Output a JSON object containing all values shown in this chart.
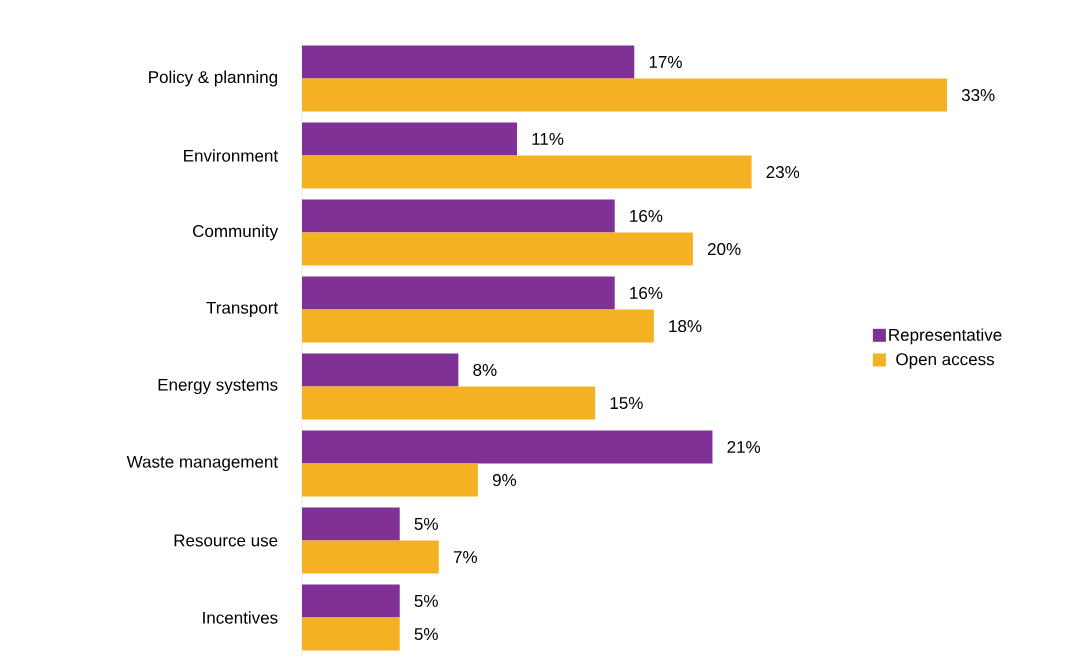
{
  "chart_data": {
    "type": "bar",
    "orientation": "horizontal",
    "categories": [
      "Policy & planning",
      "Environment",
      "Community",
      "Transport",
      "Energy systems",
      "Waste management",
      "Resource use",
      "Incentives"
    ],
    "series": [
      {
        "name": "Representative",
        "color": "#7f3196",
        "values": [
          17,
          11,
          16,
          16,
          8,
          21,
          5,
          5
        ],
        "value_labels": [
          "17%",
          "11%",
          "16%",
          "16%",
          "8%",
          "21%",
          "5%",
          "5%"
        ]
      },
      {
        "name": "Open access",
        "color": "#f4b124",
        "values": [
          33,
          23,
          20,
          18,
          15,
          9,
          7,
          5
        ],
        "value_labels": [
          "33%",
          "23%",
          "20%",
          "18%",
          "15%",
          "9%",
          "7%",
          "5%"
        ]
      }
    ],
    "legend": "right"
  }
}
